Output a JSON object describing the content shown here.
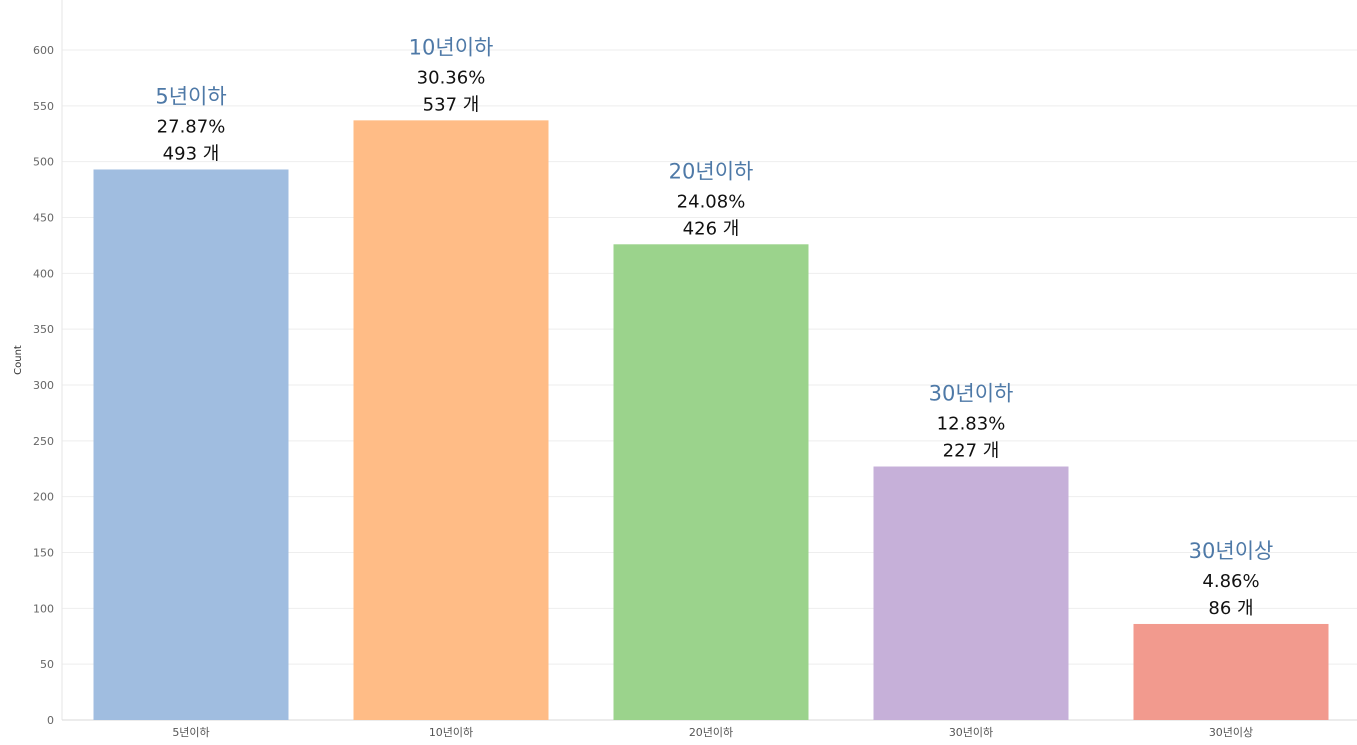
{
  "chart_data": {
    "type": "bar",
    "title": "",
    "xlabel": "",
    "ylabel": "Count",
    "ylim": [
      0,
      600
    ],
    "yticks": [
      0,
      50,
      100,
      150,
      200,
      250,
      300,
      350,
      400,
      450,
      500,
      550,
      600
    ],
    "grid": true,
    "categories": [
      "5년이하",
      "10년이하",
      "20년이하",
      "30년이하",
      "30년이상"
    ],
    "values": [
      493,
      537,
      426,
      227,
      86
    ],
    "percent_labels": [
      "27.87%",
      "30.36%",
      "24.08%",
      "12.83%",
      "4.86%"
    ],
    "count_labels": [
      "493 개",
      "537 개",
      "426 개",
      "227 개",
      "86 개"
    ],
    "colors": [
      "#a0bde0",
      "#ffbc86",
      "#9bd38c",
      "#c6b0d9",
      "#f29a8e"
    ],
    "category_label_color": "#4e79a7"
  }
}
